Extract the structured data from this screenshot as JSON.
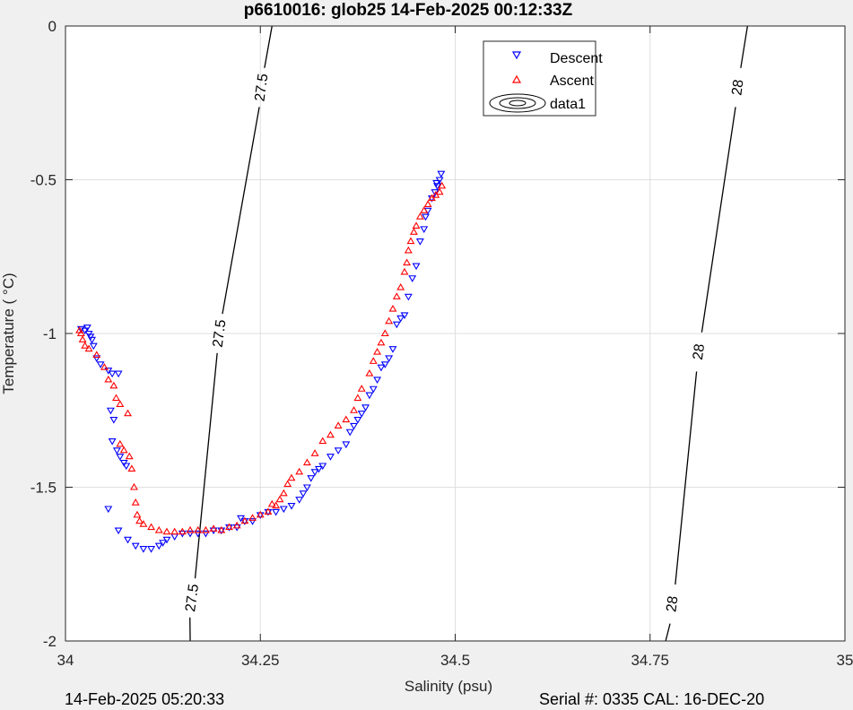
{
  "chart_data": {
    "type": "scatter",
    "title": "p6610016: glob25 14-Feb-2025 00:12:33Z",
    "xlabel": "Salinity (psu)",
    "ylabel": "Temperature (   °C)",
    "xlim": [
      34,
      35
    ],
    "ylim": [
      -2,
      0
    ],
    "x_ticks": [
      34,
      34.25,
      34.5,
      34.75,
      35
    ],
    "x_tick_labels": [
      "34",
      "34.25",
      "34.5",
      "34.75",
      "35"
    ],
    "y_ticks": [
      0,
      -0.5,
      -1,
      -1.5,
      -2
    ],
    "y_tick_labels": [
      "0",
      "-0.5",
      "-1",
      "-1.5",
      "-2"
    ],
    "grid": true,
    "legend_position": "top-right",
    "series": [
      {
        "name": "Descent",
        "marker": "triangle-down",
        "color": "#0000ff",
        "points": [
          [
            34.02,
            -0.985
          ],
          [
            34.025,
            -0.99
          ],
          [
            34.028,
            -0.98
          ],
          [
            34.03,
            -1.0
          ],
          [
            34.032,
            -1.01
          ],
          [
            34.034,
            -1.02
          ],
          [
            34.036,
            -1.04
          ],
          [
            34.04,
            -1.08
          ],
          [
            34.045,
            -1.1
          ],
          [
            34.055,
            -1.12
          ],
          [
            34.06,
            -1.13
          ],
          [
            34.068,
            -1.13
          ],
          [
            34.058,
            -1.25
          ],
          [
            34.062,
            -1.28
          ],
          [
            34.06,
            -1.35
          ],
          [
            34.066,
            -1.38
          ],
          [
            34.07,
            -1.4
          ],
          [
            34.075,
            -1.42
          ],
          [
            34.078,
            -1.43
          ],
          [
            34.055,
            -1.57
          ],
          [
            34.068,
            -1.64
          ],
          [
            34.08,
            -1.67
          ],
          [
            34.09,
            -1.69
          ],
          [
            34.1,
            -1.7
          ],
          [
            34.11,
            -1.7
          ],
          [
            34.12,
            -1.69
          ],
          [
            34.125,
            -1.68
          ],
          [
            34.13,
            -1.67
          ],
          [
            34.14,
            -1.66
          ],
          [
            34.15,
            -1.65
          ],
          [
            34.16,
            -1.65
          ],
          [
            34.17,
            -1.65
          ],
          [
            34.18,
            -1.65
          ],
          [
            34.19,
            -1.64
          ],
          [
            34.2,
            -1.64
          ],
          [
            34.21,
            -1.63
          ],
          [
            34.22,
            -1.63
          ],
          [
            34.225,
            -1.6
          ],
          [
            34.23,
            -1.61
          ],
          [
            34.24,
            -1.61
          ],
          [
            34.25,
            -1.59
          ],
          [
            34.26,
            -1.58
          ],
          [
            34.27,
            -1.58
          ],
          [
            34.28,
            -1.57
          ],
          [
            34.29,
            -1.56
          ],
          [
            34.3,
            -1.54
          ],
          [
            34.305,
            -1.52
          ],
          [
            34.31,
            -1.5
          ],
          [
            34.315,
            -1.47
          ],
          [
            34.32,
            -1.45
          ],
          [
            34.325,
            -1.44
          ],
          [
            34.33,
            -1.43
          ],
          [
            34.34,
            -1.4
          ],
          [
            34.35,
            -1.38
          ],
          [
            34.36,
            -1.36
          ],
          [
            34.365,
            -1.32
          ],
          [
            34.37,
            -1.3
          ],
          [
            34.375,
            -1.28
          ],
          [
            34.38,
            -1.26
          ],
          [
            34.385,
            -1.24
          ],
          [
            34.39,
            -1.2
          ],
          [
            34.395,
            -1.18
          ],
          [
            34.4,
            -1.15
          ],
          [
            34.405,
            -1.11
          ],
          [
            34.41,
            -1.1
          ],
          [
            34.415,
            -1.08
          ],
          [
            34.42,
            -1.05
          ],
          [
            34.425,
            -0.97
          ],
          [
            34.43,
            -0.95
          ],
          [
            34.435,
            -0.94
          ],
          [
            34.44,
            -0.88
          ],
          [
            34.445,
            -0.82
          ],
          [
            34.45,
            -0.78
          ],
          [
            34.455,
            -0.7
          ],
          [
            34.46,
            -0.66
          ],
          [
            34.462,
            -0.62
          ],
          [
            34.465,
            -0.6
          ],
          [
            34.47,
            -0.56
          ],
          [
            34.474,
            -0.54
          ],
          [
            34.477,
            -0.52
          ],
          [
            34.48,
            -0.5
          ],
          [
            34.482,
            -0.48
          ],
          [
            34.476,
            -0.51
          ]
        ]
      },
      {
        "name": "Ascent",
        "marker": "triangle-up",
        "color": "#ff0000",
        "points": [
          [
            34.018,
            -0.99
          ],
          [
            34.02,
            -1.0
          ],
          [
            34.022,
            -1.02
          ],
          [
            34.025,
            -1.04
          ],
          [
            34.03,
            -1.05
          ],
          [
            34.04,
            -1.07
          ],
          [
            34.05,
            -1.11
          ],
          [
            34.055,
            -1.15
          ],
          [
            34.062,
            -1.17
          ],
          [
            34.065,
            -1.21
          ],
          [
            34.07,
            -1.23
          ],
          [
            34.08,
            -1.26
          ],
          [
            34.07,
            -1.36
          ],
          [
            34.075,
            -1.38
          ],
          [
            34.082,
            -1.4
          ],
          [
            34.085,
            -1.44
          ],
          [
            34.088,
            -1.5
          ],
          [
            34.09,
            -1.55
          ],
          [
            34.092,
            -1.59
          ],
          [
            34.095,
            -1.61
          ],
          [
            34.1,
            -1.62
          ],
          [
            34.11,
            -1.63
          ],
          [
            34.12,
            -1.64
          ],
          [
            34.13,
            -1.645
          ],
          [
            34.14,
            -1.645
          ],
          [
            34.15,
            -1.645
          ],
          [
            34.16,
            -1.64
          ],
          [
            34.17,
            -1.64
          ],
          [
            34.18,
            -1.64
          ],
          [
            34.19,
            -1.635
          ],
          [
            34.2,
            -1.64
          ],
          [
            34.21,
            -1.63
          ],
          [
            34.22,
            -1.625
          ],
          [
            34.23,
            -1.61
          ],
          [
            34.24,
            -1.6
          ],
          [
            34.25,
            -1.59
          ],
          [
            34.26,
            -1.58
          ],
          [
            34.265,
            -1.555
          ],
          [
            34.27,
            -1.56
          ],
          [
            34.275,
            -1.54
          ],
          [
            34.28,
            -1.52
          ],
          [
            34.285,
            -1.49
          ],
          [
            34.29,
            -1.47
          ],
          [
            34.3,
            -1.45
          ],
          [
            34.31,
            -1.42
          ],
          [
            34.32,
            -1.39
          ],
          [
            34.33,
            -1.35
          ],
          [
            34.34,
            -1.33
          ],
          [
            34.35,
            -1.3
          ],
          [
            34.36,
            -1.28
          ],
          [
            34.37,
            -1.25
          ],
          [
            34.375,
            -1.21
          ],
          [
            34.38,
            -1.18
          ],
          [
            34.39,
            -1.13
          ],
          [
            34.395,
            -1.09
          ],
          [
            34.4,
            -1.06
          ],
          [
            34.405,
            -1.03
          ],
          [
            34.41,
            -1.0
          ],
          [
            34.415,
            -0.96
          ],
          [
            34.42,
            -0.92
          ],
          [
            34.425,
            -0.88
          ],
          [
            34.43,
            -0.85
          ],
          [
            34.435,
            -0.8
          ],
          [
            34.438,
            -0.77
          ],
          [
            34.44,
            -0.73
          ],
          [
            34.443,
            -0.7
          ],
          [
            34.447,
            -0.67
          ],
          [
            34.45,
            -0.65
          ],
          [
            34.455,
            -0.62
          ],
          [
            34.46,
            -0.6
          ],
          [
            34.465,
            -0.58
          ],
          [
            34.47,
            -0.56
          ],
          [
            34.475,
            -0.55
          ],
          [
            34.48,
            -0.54
          ],
          [
            34.483,
            -0.52
          ]
        ]
      }
    ],
    "contours": [
      {
        "label": "27.5",
        "path": [
          [
            34.16,
            -2.0
          ],
          [
            34.265,
            0.0
          ]
        ],
        "label_positions": [
          [
            34.252,
            -0.2
          ],
          [
            34.198,
            -1.0
          ],
          [
            34.163,
            -1.86
          ]
        ]
      },
      {
        "label": "28",
        "path": [
          [
            34.77,
            -2.0
          ],
          [
            34.875,
            0.0
          ]
        ],
        "label_positions": [
          [
            34.863,
            -0.2
          ],
          [
            34.813,
            -1.06
          ],
          [
            34.779,
            -1.88
          ]
        ]
      }
    ],
    "legend": [
      {
        "label": "Descent",
        "marker": "triangle-down",
        "color": "#0000ff"
      },
      {
        "label": "Ascent",
        "marker": "triangle-up",
        "color": "#ff0000"
      },
      {
        "label": "data1",
        "marker": "contour-ellipse",
        "color": "#000000"
      }
    ]
  },
  "footer": {
    "left": "14-Feb-2025 05:20:33",
    "right": "Serial #: 0335  CAL: 16-DEC-20"
  }
}
